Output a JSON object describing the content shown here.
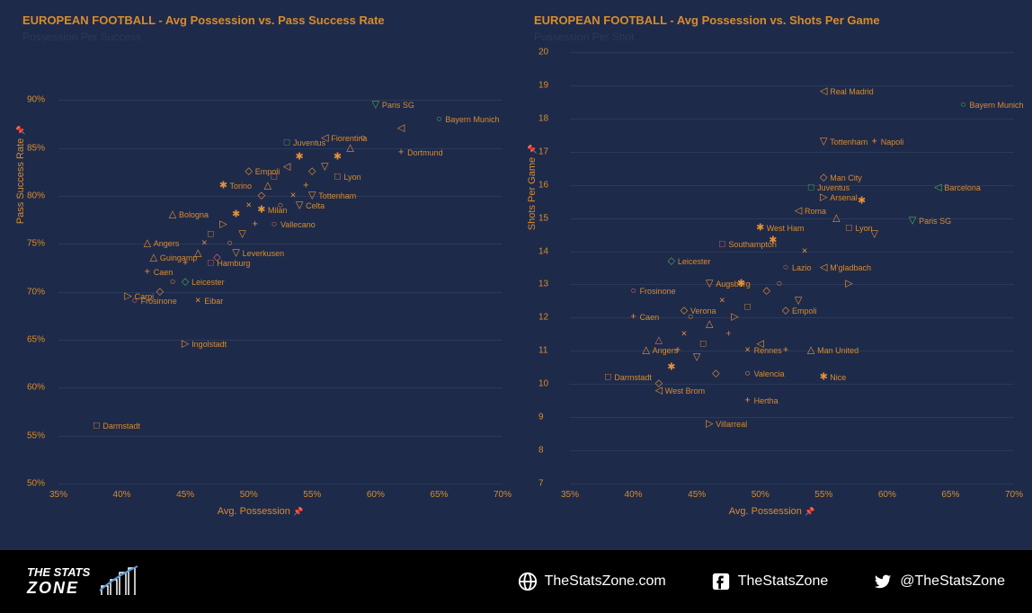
{
  "colors": {
    "background": "#1e2a4a",
    "accent": "#d98c2b",
    "grid": "#2a3a5a",
    "footer_bg": "#000000",
    "footer_text": "#ffffff",
    "marker_orange": "#e69138",
    "marker_green": "#4caf50",
    "marker_pink": "#e06666"
  },
  "chart_style": {
    "title_fontsize": 13,
    "label_fontsize": 11,
    "tick_fontsize": 10,
    "point_label_fontsize": 9,
    "marker_size": 11
  },
  "marker_glyphs": {
    "circle": "○",
    "square": "□",
    "diamond": "◇",
    "triangle_up": "△",
    "triangle_down": "▽",
    "triangle_left": "◁",
    "triangle_right": "▷",
    "plus": "+",
    "x": "×",
    "star": "✱"
  },
  "left_chart": {
    "type": "scatter",
    "title": "EUROPEAN FOOTBALL  - Avg Possession vs. Pass Success Rate",
    "subtitle": "Possession Per Success",
    "x_label": "Avg. Possession",
    "y_label": "Pass Success Rate",
    "xlim_pct": [
      35,
      70
    ],
    "ylim_pct": [
      50,
      95
    ],
    "x_ticks": [
      "35%",
      "40%",
      "45%",
      "50%",
      "55%",
      "60%",
      "65%",
      "70%"
    ],
    "y_ticks": [
      "50%",
      "55%",
      "60%",
      "65%",
      "70%",
      "75%",
      "80%",
      "85%",
      "90%"
    ],
    "labeled_points": [
      {
        "label": "Darmstadt",
        "x": 38,
        "y": 56,
        "marker": "square",
        "color": "#e69138"
      },
      {
        "label": "Ingolstadt",
        "x": 45,
        "y": 64.5,
        "marker": "triangle_right",
        "color": "#e69138"
      },
      {
        "label": "Frosinone",
        "x": 41,
        "y": 69,
        "marker": "circle",
        "color": "#e06666"
      },
      {
        "label": "Carpi",
        "x": 40.5,
        "y": 69.5,
        "marker": "triangle_right",
        "color": "#e69138"
      },
      {
        "label": "Eibar",
        "x": 46,
        "y": 69,
        "marker": "x",
        "color": "#e69138"
      },
      {
        "label": "Caen",
        "x": 42,
        "y": 72,
        "marker": "plus",
        "color": "#e69138"
      },
      {
        "label": "Guingamp",
        "x": 42.5,
        "y": 73.5,
        "marker": "triangle_up",
        "color": "#e69138"
      },
      {
        "label": "Leicester",
        "x": 45,
        "y": 71,
        "marker": "diamond",
        "color": "#4caf50"
      },
      {
        "label": "Hamburg",
        "x": 47,
        "y": 73,
        "marker": "square",
        "color": "#e06666"
      },
      {
        "label": "Angers",
        "x": 42,
        "y": 75,
        "marker": "triangle_up",
        "color": "#e69138"
      },
      {
        "label": "Leverkusen",
        "x": 49,
        "y": 74,
        "marker": "triangle_down",
        "color": "#e69138"
      },
      {
        "label": "Bologna",
        "x": 44,
        "y": 78,
        "marker": "triangle_up",
        "color": "#e69138"
      },
      {
        "label": "Vallecano",
        "x": 52,
        "y": 77,
        "marker": "circle",
        "color": "#e06666"
      },
      {
        "label": "Milan",
        "x": 51,
        "y": 78.5,
        "marker": "star",
        "color": "#e69138"
      },
      {
        "label": "Torino",
        "x": 48,
        "y": 81,
        "marker": "star",
        "color": "#e69138"
      },
      {
        "label": "Celta",
        "x": 54,
        "y": 79,
        "marker": "triangle_down",
        "color": "#e69138"
      },
      {
        "label": "Empoli",
        "x": 50,
        "y": 82.5,
        "marker": "diamond",
        "color": "#e69138"
      },
      {
        "label": "Tottenham",
        "x": 55,
        "y": 80,
        "marker": "triangle_down",
        "color": "#e69138"
      },
      {
        "label": "Lyon",
        "x": 57,
        "y": 82,
        "marker": "square",
        "color": "#e69138"
      },
      {
        "label": "Juventus",
        "x": 53,
        "y": 85.5,
        "marker": "square",
        "color": "#4caf50"
      },
      {
        "label": "Fiorentina",
        "x": 56,
        "y": 86,
        "marker": "triangle_left",
        "color": "#e69138"
      },
      {
        "label": "Dortmund",
        "x": 62,
        "y": 84.5,
        "marker": "plus",
        "color": "#e69138"
      },
      {
        "label": "Paris SG",
        "x": 60,
        "y": 89.5,
        "marker": "triangle_down",
        "color": "#4caf50"
      },
      {
        "label": "Bayern Munich",
        "x": 65,
        "y": 88,
        "marker": "circle",
        "color": "#4caf50"
      }
    ],
    "unlabeled_points": [
      {
        "x": 43,
        "y": 70,
        "marker": "diamond",
        "color": "#e69138"
      },
      {
        "x": 44,
        "y": 71,
        "marker": "circle",
        "color": "#e69138"
      },
      {
        "x": 45,
        "y": 73,
        "marker": "plus",
        "color": "#e69138"
      },
      {
        "x": 46,
        "y": 74,
        "marker": "triangle_up",
        "color": "#e69138"
      },
      {
        "x": 46.5,
        "y": 75,
        "marker": "x",
        "color": "#e69138"
      },
      {
        "x": 47,
        "y": 76,
        "marker": "square",
        "color": "#e69138"
      },
      {
        "x": 47.5,
        "y": 73.5,
        "marker": "diamond",
        "color": "#e06666"
      },
      {
        "x": 48,
        "y": 77,
        "marker": "triangle_right",
        "color": "#e69138"
      },
      {
        "x": 48.5,
        "y": 75,
        "marker": "circle",
        "color": "#e69138"
      },
      {
        "x": 49,
        "y": 78,
        "marker": "star",
        "color": "#e69138"
      },
      {
        "x": 49.5,
        "y": 76,
        "marker": "triangle_down",
        "color": "#e69138"
      },
      {
        "x": 50,
        "y": 79,
        "marker": "x",
        "color": "#e69138"
      },
      {
        "x": 50.5,
        "y": 77,
        "marker": "plus",
        "color": "#e69138"
      },
      {
        "x": 51,
        "y": 80,
        "marker": "diamond",
        "color": "#e69138"
      },
      {
        "x": 51.5,
        "y": 81,
        "marker": "triangle_up",
        "color": "#e69138"
      },
      {
        "x": 52,
        "y": 82,
        "marker": "square",
        "color": "#e69138"
      },
      {
        "x": 52.5,
        "y": 79,
        "marker": "circle",
        "color": "#e69138"
      },
      {
        "x": 53,
        "y": 83,
        "marker": "triangle_left",
        "color": "#e69138"
      },
      {
        "x": 53.5,
        "y": 80,
        "marker": "x",
        "color": "#e69138"
      },
      {
        "x": 54,
        "y": 84,
        "marker": "star",
        "color": "#e69138"
      },
      {
        "x": 54.5,
        "y": 81,
        "marker": "plus",
        "color": "#e69138"
      },
      {
        "x": 55,
        "y": 82.5,
        "marker": "diamond",
        "color": "#e69138"
      },
      {
        "x": 56,
        "y": 83,
        "marker": "triangle_down",
        "color": "#e69138"
      },
      {
        "x": 57,
        "y": 84,
        "marker": "star",
        "color": "#e69138"
      },
      {
        "x": 58,
        "y": 85,
        "marker": "triangle_up",
        "color": "#e69138"
      },
      {
        "x": 59,
        "y": 86,
        "marker": "circle",
        "color": "#e69138"
      },
      {
        "x": 62,
        "y": 87,
        "marker": "triangle_left",
        "color": "#e69138"
      }
    ]
  },
  "right_chart": {
    "type": "scatter",
    "title": "EUROPEAN FOOTBALL  - Avg Possession vs. Shots Per Game",
    "subtitle": "Possession Per Shot",
    "x_label": "Avg. Possession",
    "y_label": "Shots Per Game",
    "xlim_pct": [
      35,
      70
    ],
    "ylim": [
      7,
      20
    ],
    "x_ticks": [
      "35%",
      "40%",
      "45%",
      "50%",
      "55%",
      "60%",
      "65%",
      "70%"
    ],
    "y_ticks": [
      "7",
      "8",
      "9",
      "10",
      "11",
      "12",
      "13",
      "14",
      "15",
      "16",
      "17",
      "18",
      "19",
      "20"
    ],
    "labeled_points": [
      {
        "label": "Darmstadt",
        "x": 38,
        "y": 10.2,
        "marker": "square",
        "color": "#e69138"
      },
      {
        "label": "West Brom",
        "x": 42,
        "y": 9.8,
        "marker": "triangle_left",
        "color": "#e69138"
      },
      {
        "label": "Villarreal",
        "x": 46,
        "y": 8.8,
        "marker": "triangle_right",
        "color": "#e69138"
      },
      {
        "label": "Hertha",
        "x": 49,
        "y": 9.5,
        "marker": "plus",
        "color": "#e69138"
      },
      {
        "label": "Angers",
        "x": 41,
        "y": 11,
        "marker": "triangle_up",
        "color": "#e69138"
      },
      {
        "label": "Valencia",
        "x": 49,
        "y": 10.3,
        "marker": "circle",
        "color": "#e69138"
      },
      {
        "label": "Rennes",
        "x": 49,
        "y": 11,
        "marker": "x",
        "color": "#e69138"
      },
      {
        "label": "Nice",
        "x": 55,
        "y": 10.2,
        "marker": "star",
        "color": "#e69138"
      },
      {
        "label": "Man United",
        "x": 54,
        "y": 11,
        "marker": "triangle_up",
        "color": "#e69138"
      },
      {
        "label": "Caen",
        "x": 40,
        "y": 12,
        "marker": "plus",
        "color": "#e69138"
      },
      {
        "label": "Verona",
        "x": 44,
        "y": 12.2,
        "marker": "diamond",
        "color": "#e69138"
      },
      {
        "label": "Frosinone",
        "x": 40,
        "y": 12.8,
        "marker": "circle",
        "color": "#e06666"
      },
      {
        "label": "Empoli",
        "x": 52,
        "y": 12.2,
        "marker": "diamond",
        "color": "#e69138"
      },
      {
        "label": "Augsburg",
        "x": 46,
        "y": 13,
        "marker": "triangle_down",
        "color": "#e69138"
      },
      {
        "label": "Leicester",
        "x": 43,
        "y": 13.7,
        "marker": "diamond",
        "color": "#4caf50"
      },
      {
        "label": "Lazio",
        "x": 52,
        "y": 13.5,
        "marker": "circle",
        "color": "#e06666"
      },
      {
        "label": "M'gladbach",
        "x": 55,
        "y": 13.5,
        "marker": "triangle_left",
        "color": "#e69138"
      },
      {
        "label": "Southampton",
        "x": 47,
        "y": 14.2,
        "marker": "square",
        "color": "#e06666"
      },
      {
        "label": "West Ham",
        "x": 50,
        "y": 14.7,
        "marker": "star",
        "color": "#e69138"
      },
      {
        "label": "Lyon",
        "x": 57,
        "y": 14.7,
        "marker": "square",
        "color": "#e69138"
      },
      {
        "label": "Roma",
        "x": 53,
        "y": 15.2,
        "marker": "triangle_left",
        "color": "#e69138"
      },
      {
        "label": "Paris SG",
        "x": 62,
        "y": 14.9,
        "marker": "triangle_down",
        "color": "#4caf50"
      },
      {
        "label": "Arsenal",
        "x": 55,
        "y": 15.6,
        "marker": "triangle_right",
        "color": "#e69138"
      },
      {
        "label": "Juventus",
        "x": 54,
        "y": 15.9,
        "marker": "square",
        "color": "#4caf50"
      },
      {
        "label": "Barcelona",
        "x": 64,
        "y": 15.9,
        "marker": "triangle_left",
        "color": "#4caf50"
      },
      {
        "label": "Man City",
        "x": 55,
        "y": 16.2,
        "marker": "diamond",
        "color": "#e69138"
      },
      {
        "label": "Tottenham",
        "x": 55,
        "y": 17.3,
        "marker": "triangle_down",
        "color": "#e69138"
      },
      {
        "label": "Napoli",
        "x": 59,
        "y": 17.3,
        "marker": "plus",
        "color": "#e69138"
      },
      {
        "label": "Real Madrid",
        "x": 55,
        "y": 18.8,
        "marker": "triangle_left",
        "color": "#e69138"
      },
      {
        "label": "Bayern Munich",
        "x": 66,
        "y": 18.4,
        "marker": "circle",
        "color": "#4caf50"
      }
    ],
    "unlabeled_points": [
      {
        "x": 42,
        "y": 10,
        "marker": "diamond",
        "color": "#e69138"
      },
      {
        "x": 43,
        "y": 10.5,
        "marker": "star",
        "color": "#e69138"
      },
      {
        "x": 43.5,
        "y": 11,
        "marker": "plus",
        "color": "#e69138"
      },
      {
        "x": 44,
        "y": 11.5,
        "marker": "x",
        "color": "#e69138"
      },
      {
        "x": 44.5,
        "y": 12,
        "marker": "circle",
        "color": "#e69138"
      },
      {
        "x": 45,
        "y": 10.8,
        "marker": "triangle_down",
        "color": "#e69138"
      },
      {
        "x": 45.5,
        "y": 11.2,
        "marker": "square",
        "color": "#e69138"
      },
      {
        "x": 46,
        "y": 11.8,
        "marker": "triangle_up",
        "color": "#e69138"
      },
      {
        "x": 46.5,
        "y": 10.3,
        "marker": "diamond",
        "color": "#e69138"
      },
      {
        "x": 47,
        "y": 12.5,
        "marker": "x",
        "color": "#e69138"
      },
      {
        "x": 47.5,
        "y": 11.5,
        "marker": "plus",
        "color": "#e06666"
      },
      {
        "x": 48,
        "y": 12,
        "marker": "triangle_right",
        "color": "#e69138"
      },
      {
        "x": 48.5,
        "y": 13,
        "marker": "star",
        "color": "#e69138"
      },
      {
        "x": 49,
        "y": 12.3,
        "marker": "square",
        "color": "#e69138"
      },
      {
        "x": 50,
        "y": 11.2,
        "marker": "triangle_left",
        "color": "#e69138"
      },
      {
        "x": 50.5,
        "y": 12.8,
        "marker": "diamond",
        "color": "#e69138"
      },
      {
        "x": 51,
        "y": 14.3,
        "marker": "star",
        "color": "#e69138"
      },
      {
        "x": 51.5,
        "y": 13,
        "marker": "circle",
        "color": "#e69138"
      },
      {
        "x": 52,
        "y": 11,
        "marker": "plus",
        "color": "#e69138"
      },
      {
        "x": 53,
        "y": 12.5,
        "marker": "triangle_down",
        "color": "#e69138"
      },
      {
        "x": 53.5,
        "y": 14,
        "marker": "x",
        "color": "#e69138"
      },
      {
        "x": 56,
        "y": 15,
        "marker": "triangle_up",
        "color": "#e69138"
      },
      {
        "x": 57,
        "y": 13,
        "marker": "triangle_right",
        "color": "#e69138"
      },
      {
        "x": 58,
        "y": 15.5,
        "marker": "star",
        "color": "#e69138"
      },
      {
        "x": 59,
        "y": 14.5,
        "marker": "triangle_down",
        "color": "#e69138"
      },
      {
        "x": 42,
        "y": 11.3,
        "marker": "triangle_up",
        "color": "#e06666"
      }
    ]
  },
  "footer": {
    "logo_top": "THE STATS",
    "logo_bottom": "ZONE",
    "website": "TheStatsZone.com",
    "facebook": "TheStatsZone",
    "twitter": "@TheStatsZone"
  }
}
